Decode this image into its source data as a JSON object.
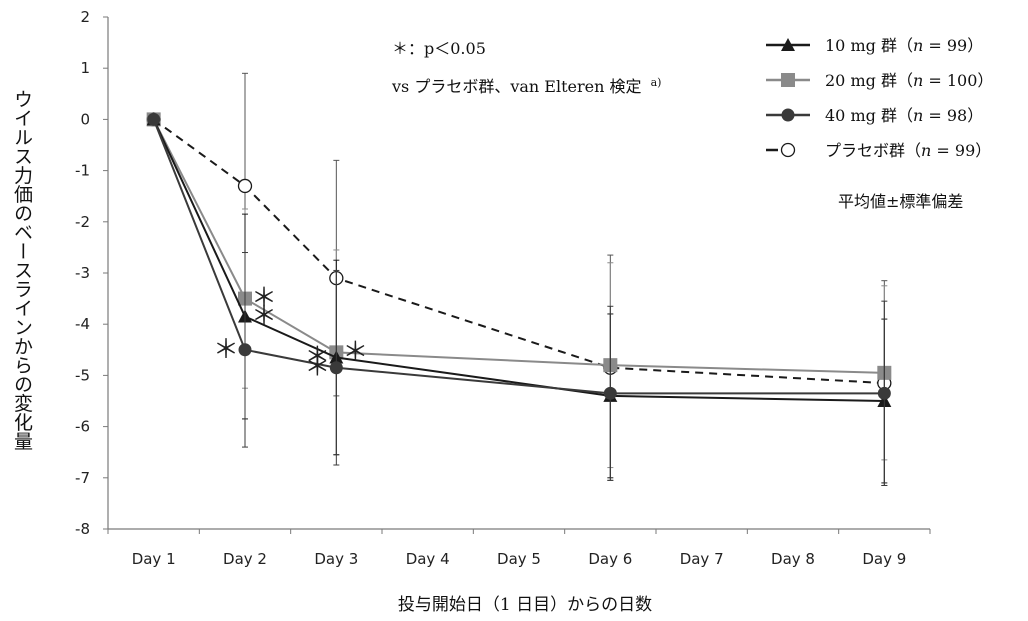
{
  "chart_data": {
    "type": "line",
    "xlabel": "投与開始日（1 日目）からの日数",
    "ylabel": "ウイルス力価のベースラインからの変化量",
    "categories": [
      "Day 1",
      "Day 2",
      "Day 3",
      "Day 4",
      "Day 5",
      "Day 6",
      "Day 7",
      "Day 8",
      "Day 9"
    ],
    "ylim": [
      -8,
      2
    ],
    "yticks": [
      2,
      1,
      0,
      -1,
      -2,
      -3,
      -4,
      -5,
      -6,
      -7,
      -8
    ],
    "grid": false,
    "legend_position": "top-right",
    "series": [
      {
        "name": "10 mg 群（n = 99）",
        "marker": "triangle",
        "dashed": false,
        "color": "#1a1a1a",
        "x": [
          "Day 1",
          "Day 2",
          "Day 3",
          "Day 6",
          "Day 9"
        ],
        "values": [
          0,
          -3.85,
          -4.65,
          -5.4,
          -5.5
        ],
        "error": [
          0,
          2.0,
          1.9,
          1.6,
          1.6
        ]
      },
      {
        "name": "20 mg 群（n = 100）",
        "marker": "square",
        "dashed": false,
        "color": "#8a8a8a",
        "x": [
          "Day 1",
          "Day 2",
          "Day 3",
          "Day 6",
          "Day 9"
        ],
        "values": [
          0,
          -3.5,
          -4.55,
          -4.8,
          -4.95
        ],
        "error": [
          0,
          1.75,
          2.0,
          2.0,
          1.7
        ]
      },
      {
        "name": "40 mg 群（n = 98）",
        "marker": "circle",
        "dashed": false,
        "color": "#3a3a3a",
        "x": [
          "Day 1",
          "Day 2",
          "Day 3",
          "Day 6",
          "Day 9"
        ],
        "values": [
          0,
          -4.5,
          -4.85,
          -5.35,
          -5.35
        ],
        "error": [
          0,
          1.9,
          1.9,
          1.7,
          1.8
        ]
      },
      {
        "name": "プラセボ群（n = 99）",
        "marker": "open-circle",
        "dashed": true,
        "color": "#1a1a1a",
        "x": [
          "Day 1",
          "Day 2",
          "Day 3",
          "Day 6",
          "Day 9"
        ],
        "values": [
          0,
          -1.3,
          -3.1,
          -4.85,
          -5.15
        ],
        "error": [
          0,
          2.2,
          2.3,
          2.2,
          2.0
        ]
      }
    ],
    "significance": {
      "symbol": "＊",
      "marks": [
        {
          "day": "Day 2",
          "series": "20 mg",
          "side": "right"
        },
        {
          "day": "Day 2",
          "series": "10 mg",
          "side": "right"
        },
        {
          "day": "Day 2",
          "series": "40 mg",
          "side": "left"
        },
        {
          "day": "Day 3",
          "series": "10 mg",
          "side": "left"
        },
        {
          "day": "Day 3",
          "series": "20 mg",
          "side": "right"
        },
        {
          "day": "Day 3",
          "series": "40 mg",
          "side": "left"
        }
      ]
    },
    "annotations": {
      "sig_note": "＊：p＜0.05",
      "test_note": "vs プラセボ群、van Elteren 検定",
      "test_sup": "a)",
      "stat_note": "平均値±標準偏差"
    }
  }
}
